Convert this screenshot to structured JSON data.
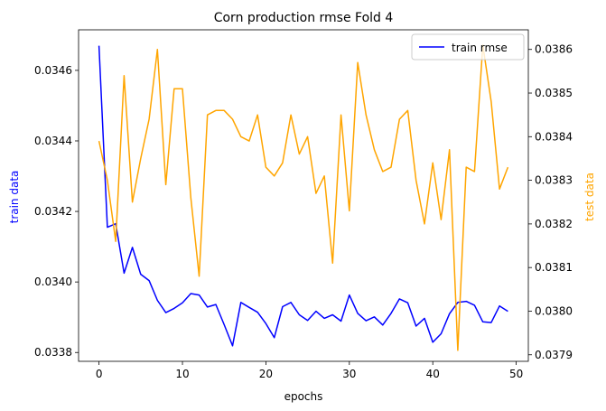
{
  "chart_data": {
    "type": "line",
    "title": "Corn production rmse Fold 4",
    "xlabel": "epochs",
    "ylabel_left": "train data",
    "ylabel_right": "test data",
    "xlim": [
      -2.45,
      51.45
    ],
    "ylim_left": [
      0.033775,
      0.034715
    ],
    "ylim_right": [
      0.037885,
      0.038645
    ],
    "x_ticks": [
      0,
      10,
      20,
      30,
      40,
      50
    ],
    "y_ticks_left": [
      0.0338,
      0.034,
      0.0342,
      0.0344,
      0.0346
    ],
    "y_ticks_right": [
      0.0379,
      0.038,
      0.0381,
      0.0382,
      0.0383,
      0.0384,
      0.0385,
      0.0386
    ],
    "x_tick_labels": [
      "0",
      "10",
      "20",
      "30",
      "40",
      "50"
    ],
    "y_tick_labels_left": [
      "0.0338",
      "0.0340",
      "0.0342",
      "0.0344",
      "0.0346"
    ],
    "y_tick_labels_right": [
      "0.0379",
      "0.0380",
      "0.0381",
      "0.0382",
      "0.0383",
      "0.0384",
      "0.0385",
      "0.0386"
    ],
    "legend_position": "top-right",
    "grid": false,
    "x": [
      0,
      1,
      2,
      3,
      4,
      5,
      6,
      7,
      8,
      9,
      10,
      11,
      12,
      13,
      14,
      15,
      16,
      17,
      18,
      19,
      20,
      21,
      22,
      23,
      24,
      25,
      26,
      27,
      28,
      29,
      30,
      31,
      32,
      33,
      34,
      35,
      36,
      37,
      38,
      39,
      40,
      41,
      42,
      43,
      44,
      45,
      46,
      47,
      48,
      49
    ],
    "series": [
      {
        "name": "train rmse",
        "axis": "left",
        "color": "#0000ff",
        "values": [
          0.03467,
          0.034155,
          0.034165,
          0.034025,
          0.034098,
          0.034022,
          0.034004,
          0.033948,
          0.033913,
          0.033925,
          0.033941,
          0.033967,
          0.033963,
          0.033929,
          0.033936,
          0.033879,
          0.033819,
          0.033942,
          0.033928,
          0.033914,
          0.033882,
          0.033842,
          0.03393,
          0.033942,
          0.033907,
          0.033891,
          0.033917,
          0.033897,
          0.033907,
          0.033889,
          0.033963,
          0.033911,
          0.03389,
          0.033901,
          0.033878,
          0.033911,
          0.033952,
          0.033941,
          0.033875,
          0.033897,
          0.033829,
          0.033853,
          0.03391,
          0.033942,
          0.033945,
          0.033934,
          0.033887,
          0.033885,
          0.033932,
          0.033917
        ]
      },
      {
        "name": "",
        "axis": "right",
        "color": "#ffa500",
        "values": [
          0.03839,
          0.0383,
          0.03816,
          0.03854,
          0.03825,
          0.03835,
          0.03844,
          0.0386,
          0.03829,
          0.03851,
          0.03851,
          0.03826,
          0.03808,
          0.03845,
          0.03846,
          0.03846,
          0.03844,
          0.0384,
          0.03839,
          0.03845,
          0.03833,
          0.03831,
          0.03834,
          0.03845,
          0.03836,
          0.0384,
          0.03827,
          0.03831,
          0.03811,
          0.03845,
          0.03823,
          0.03857,
          0.03845,
          0.03837,
          0.03832,
          0.03833,
          0.03844,
          0.03846,
          0.0383,
          0.0382,
          0.03834,
          0.03821,
          0.03837,
          0.03791,
          0.03833,
          0.03832,
          0.03861,
          0.03848,
          0.03828,
          0.03833
        ]
      }
    ]
  }
}
